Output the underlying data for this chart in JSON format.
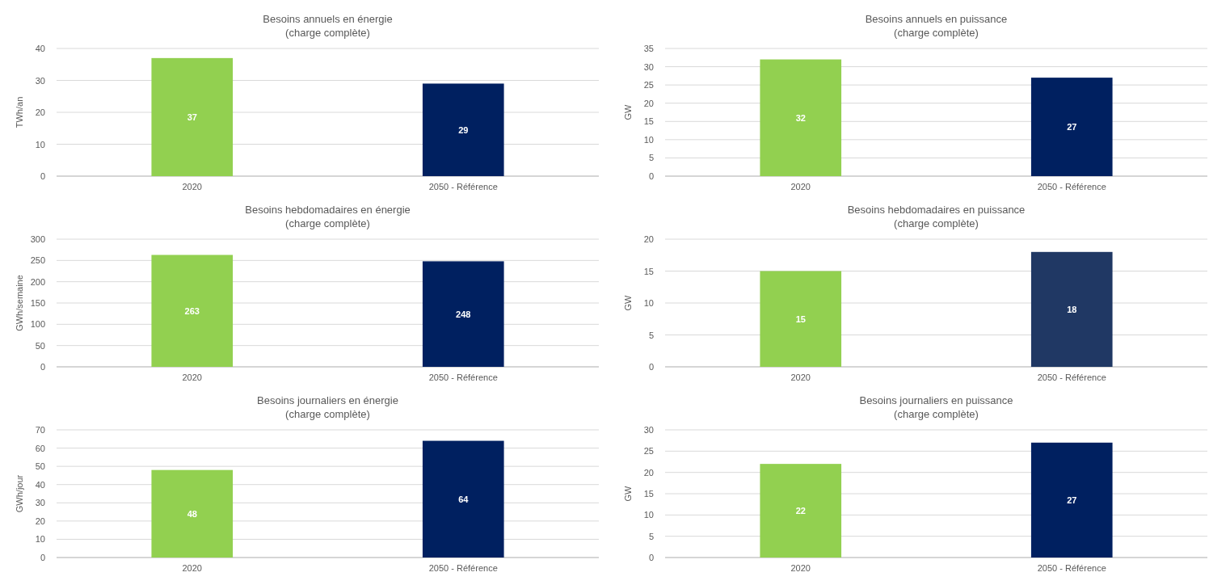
{
  "chart_data": [
    {
      "type": "bar",
      "title": "Besoins annuels en énergie",
      "subtitle": "(charge complète)",
      "ylabel": "TWh/an",
      "categories": [
        "2020",
        "2050 - Référence"
      ],
      "values": [
        37,
        29
      ],
      "colors": [
        "#92d050",
        "#002060"
      ],
      "ylim": [
        0,
        40
      ],
      "yticks": [
        0,
        10,
        20,
        30,
        40
      ],
      "grid": "y",
      "data_labels": true
    },
    {
      "type": "bar",
      "title": "Besoins annuels en puissance",
      "subtitle": "(charge complète)",
      "ylabel": "GW",
      "categories": [
        "2020",
        "2050 - Référence"
      ],
      "values": [
        32,
        27
      ],
      "colors": [
        "#92d050",
        "#002060"
      ],
      "ylim": [
        0,
        35
      ],
      "yticks": [
        0,
        5,
        10,
        15,
        20,
        25,
        30,
        35
      ],
      "grid": "y",
      "data_labels": true
    },
    {
      "type": "bar",
      "title": "Besoins hebdomadaires en énergie",
      "subtitle": "(charge complète)",
      "ylabel": "GWh/semaine",
      "categories": [
        "2020",
        "2050 - Référence"
      ],
      "values": [
        263,
        248
      ],
      "colors": [
        "#92d050",
        "#002060"
      ],
      "ylim": [
        0,
        300
      ],
      "yticks": [
        0,
        50,
        100,
        150,
        200,
        250,
        300
      ],
      "grid": "y",
      "data_labels": true
    },
    {
      "type": "bar",
      "title": "Besoins hebdomadaires en puissance",
      "subtitle": "(charge complète)",
      "ylabel": "GW",
      "categories": [
        "2020",
        "2050 - Référence"
      ],
      "values": [
        15,
        18
      ],
      "colors": [
        "#92d050",
        "#203864"
      ],
      "ylim": [
        0,
        20
      ],
      "yticks": [
        0,
        5,
        10,
        15,
        20
      ],
      "grid": "y",
      "data_labels": true
    },
    {
      "type": "bar",
      "title": "Besoins journaliers en énergie",
      "subtitle": "(charge complète)",
      "ylabel": "GWh/jour",
      "categories": [
        "2020",
        "2050 - Référence"
      ],
      "values": [
        48,
        64
      ],
      "colors": [
        "#92d050",
        "#002060"
      ],
      "ylim": [
        0,
        70
      ],
      "yticks": [
        0,
        10,
        20,
        30,
        40,
        50,
        60,
        70
      ],
      "grid": "y",
      "data_labels": true
    },
    {
      "type": "bar",
      "title": "Besoins journaliers en puissance",
      "subtitle": "(charge complète)",
      "ylabel": "GW",
      "categories": [
        "2020",
        "2050 - Référence"
      ],
      "values": [
        22,
        27
      ],
      "colors": [
        "#92d050",
        "#002060"
      ],
      "ylim": [
        0,
        30
      ],
      "yticks": [
        0,
        5,
        10,
        15,
        20,
        25,
        30
      ],
      "grid": "y",
      "data_labels": true
    }
  ]
}
